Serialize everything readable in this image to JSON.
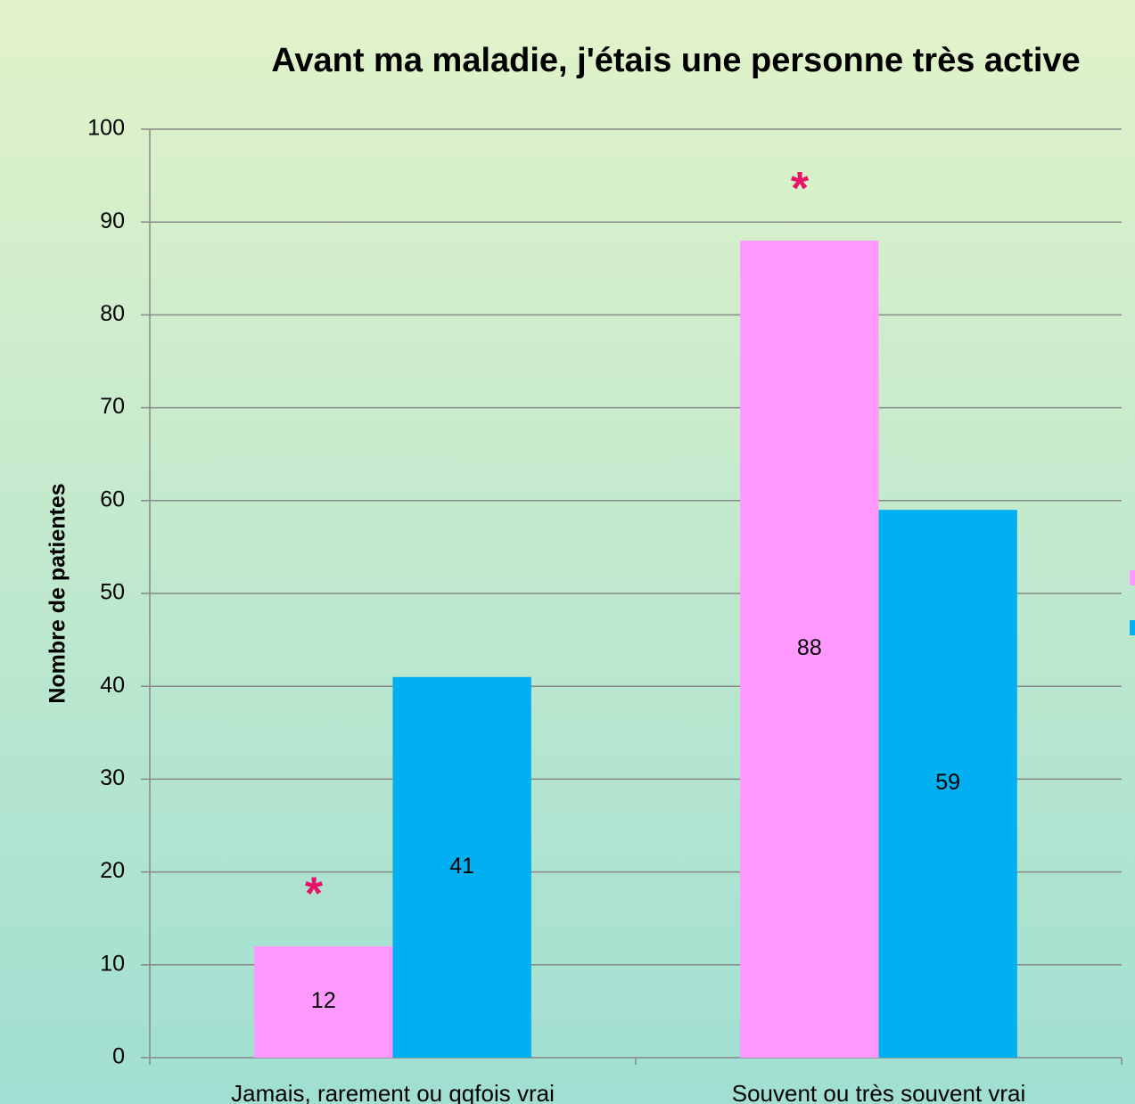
{
  "chart_data": {
    "type": "bar",
    "title": "Avant ma maladie, j'étais une personne très active",
    "y_label": "Nombre de patientes",
    "categories": [
      "Jamais, rarement ou qqfois vrai",
      "Souvent ou très souvent vrai"
    ],
    "series": [
      {
        "color": "#ff99ff",
        "values": [
          12,
          88
        ]
      },
      {
        "color": "#00b0f0",
        "values": [
          41,
          59
        ]
      }
    ],
    "annotations": [
      "*",
      "*"
    ],
    "ylim": [
      0,
      100
    ],
    "yticks": [
      0,
      10,
      20,
      30,
      40,
      50,
      60,
      70,
      80,
      90,
      100
    ],
    "grid": true
  }
}
